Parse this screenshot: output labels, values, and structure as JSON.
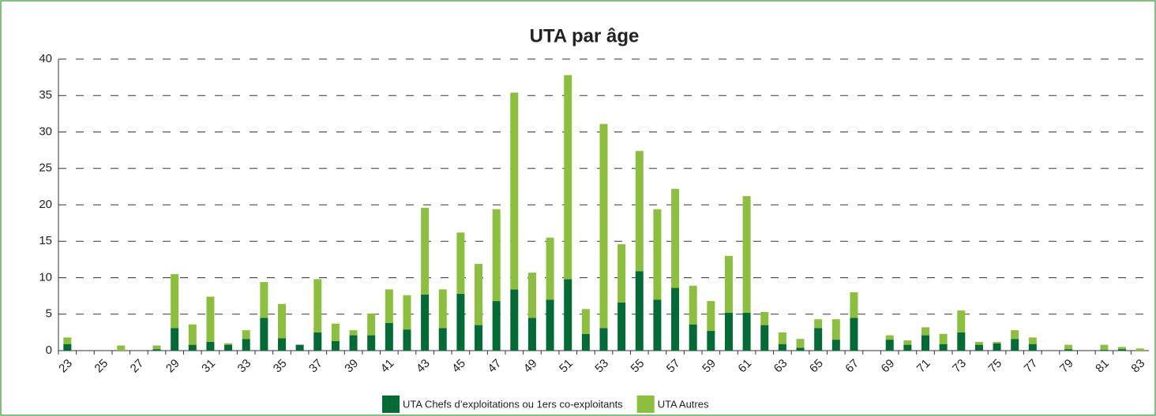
{
  "chart_data": {
    "type": "stacked_bar",
    "title": "UTA par âge",
    "categories": [
      23,
      null,
      25,
      null,
      27,
      null,
      29,
      null,
      31,
      null,
      33,
      null,
      35,
      null,
      37,
      null,
      39,
      null,
      41,
      null,
      43,
      null,
      45,
      null,
      47,
      null,
      49,
      null,
      51,
      null,
      53,
      null,
      55,
      null,
      57,
      null,
      59,
      null,
      61,
      null,
      63,
      null,
      65,
      null,
      67,
      null,
      69,
      null,
      71,
      null,
      73,
      null,
      75,
      null,
      77,
      null,
      79,
      null,
      81,
      null,
      83
    ],
    "series": [
      {
        "name": "UTA Chefs d’exploitations ou 1ers co-exploitants",
        "color": "#006b35",
        "values": [
          0.9,
          0,
          0,
          0,
          0,
          0.2,
          3.1,
          0.8,
          1.2,
          0.8,
          1.6,
          4.5,
          1.7,
          0.8,
          2.5,
          1.3,
          2.1,
          2.1,
          3.8,
          2.9,
          7.7,
          3.1,
          7.8,
          3.5,
          6.8,
          8.4,
          4.5,
          7.0,
          9.8,
          2.3,
          3.1,
          6.6,
          10.9,
          7.0,
          8.6,
          3.6,
          2.7,
          5.2,
          5.2,
          3.5,
          0.9,
          0.4,
          3.1,
          1.5,
          4.5,
          0,
          1.5,
          0.8,
          2.1,
          0.9,
          2.5,
          0.8,
          1.0,
          1.6,
          0.9,
          0,
          0.2,
          0,
          0.1,
          0.2,
          0
        ]
      },
      {
        "name": "UTA Autres",
        "color": "#8dbf3f",
        "values": [
          0.9,
          0,
          0,
          0.7,
          0,
          0.5,
          7.4,
          2.8,
          6.2,
          0.2,
          1.2,
          4.9,
          4.7,
          0,
          7.3,
          2.4,
          0.7,
          3.0,
          4.6,
          4.7,
          11.9,
          5.3,
          8.4,
          8.4,
          12.6,
          27.0,
          6.2,
          8.5,
          28.0,
          3.4,
          28.0,
          8.0,
          16.5,
          12.4,
          13.6,
          5.3,
          4.1,
          7.8,
          16.0,
          1.8,
          1.6,
          1.2,
          1.2,
          2.8,
          3.5,
          0,
          0.6,
          0.6,
          1.1,
          1.4,
          3.0,
          0.4,
          0.2,
          1.2,
          0.9,
          0,
          0.6,
          0,
          0.7,
          0.3,
          0.3
        ]
      }
    ],
    "ylim": [
      0,
      40
    ],
    "yticks": [
      0,
      5,
      10,
      15,
      20,
      25,
      30,
      35,
      40
    ],
    "grid": true
  }
}
